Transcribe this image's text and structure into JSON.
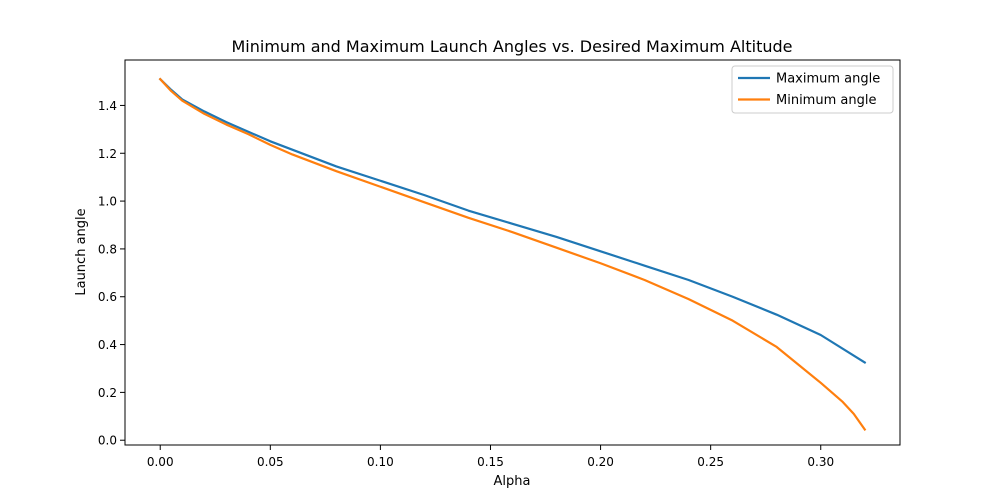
{
  "chart_data": {
    "type": "line",
    "title": "Minimum and Maximum Launch Angles vs. Desired Maximum Altitude",
    "xlabel": "Alpha",
    "ylabel": "Launch angle",
    "xlim": [
      -0.016,
      0.336
    ],
    "ylim": [
      -0.02,
      1.59
    ],
    "xticks": [
      0.0,
      0.05,
      0.1,
      0.15,
      0.2,
      0.25,
      0.3
    ],
    "xtick_labels": [
      "0.00",
      "0.05",
      "0.10",
      "0.15",
      "0.20",
      "0.25",
      "0.30"
    ],
    "yticks": [
      0.0,
      0.2,
      0.4,
      0.6,
      0.8,
      1.0,
      1.2,
      1.4
    ],
    "ytick_labels": [
      "0.0",
      "0.2",
      "0.4",
      "0.6",
      "0.8",
      "1.0",
      "1.2",
      "1.4"
    ],
    "grid": false,
    "legend_position": "top-right",
    "series": [
      {
        "name": "Maximum angle",
        "color": "#1f77b4",
        "x": [
          0.0,
          0.005,
          0.01,
          0.02,
          0.03,
          0.04,
          0.05,
          0.06,
          0.08,
          0.1,
          0.12,
          0.14,
          0.16,
          0.18,
          0.2,
          0.22,
          0.24,
          0.26,
          0.28,
          0.3,
          0.32
        ],
        "y": [
          1.51,
          1.465,
          1.425,
          1.375,
          1.33,
          1.29,
          1.25,
          1.215,
          1.145,
          1.085,
          1.025,
          0.96,
          0.905,
          0.85,
          0.79,
          0.73,
          0.67,
          0.6,
          0.525,
          0.44,
          0.325
        ]
      },
      {
        "name": "Minimum angle",
        "color": "#ff7f0e",
        "x": [
          0.0,
          0.005,
          0.01,
          0.02,
          0.03,
          0.04,
          0.05,
          0.06,
          0.08,
          0.1,
          0.12,
          0.14,
          0.16,
          0.18,
          0.2,
          0.22,
          0.24,
          0.26,
          0.28,
          0.3,
          0.31,
          0.315,
          0.32
        ],
        "y": [
          1.51,
          1.46,
          1.42,
          1.365,
          1.32,
          1.28,
          1.235,
          1.195,
          1.125,
          1.06,
          0.995,
          0.93,
          0.87,
          0.805,
          0.74,
          0.67,
          0.59,
          0.5,
          0.39,
          0.24,
          0.16,
          0.11,
          0.045
        ]
      }
    ]
  }
}
